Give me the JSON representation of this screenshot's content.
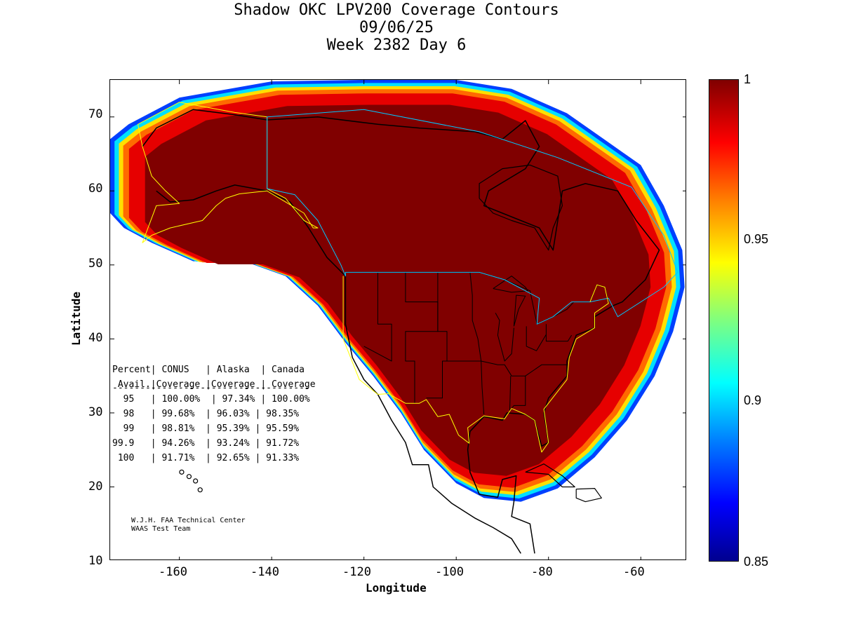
{
  "title": {
    "line1": "Shadow OKC LPV200 Coverage Contours",
    "line2": "09/06/25",
    "line3": "Week 2382 Day 6"
  },
  "axes": {
    "xlabel": "Longitude",
    "ylabel": "Latitude",
    "xticks": [
      "-160",
      "-140",
      "-120",
      "-100",
      "-80",
      "-60"
    ],
    "yticks": [
      "70",
      "60",
      "50",
      "40",
      "30",
      "20",
      "10"
    ],
    "xlim": [
      -175,
      -50
    ],
    "ylim": [
      10,
      75
    ]
  },
  "colorbar": {
    "labels": [
      "1",
      "0.95",
      "0.9",
      "0.85"
    ],
    "range": [
      0.85,
      1
    ],
    "colormap": "jet"
  },
  "colors": {
    "coverage_core": "#800000",
    "coverage_red": "#e60000",
    "coverage_orange": "#ff6a00",
    "coverage_yellow": "#ffe000",
    "coverage_cyan": "#00e0ff",
    "coverage_blue": "#0040ff",
    "alaska_boundary": "#ffff00",
    "canada_boundary": "#00c8ff"
  },
  "stats_table": {
    "header1": "Percent| CONUS   | Alaska  | Canada",
    "header2": " Avail.|Coverage |Coverage | Coverage",
    "separator": "------------------------------------",
    "rows": [
      "  95   | 100.00%  | 97.34% | 100.00%",
      "  98   | 99.68%  | 96.03% | 98.35%",
      "  99   | 98.81%  | 95.39% | 95.59%",
      "99.9   | 94.26%  | 93.24% | 91.72%",
      " 100   | 91.71%  | 92.65% | 91.33%"
    ]
  },
  "credits": {
    "line1": "W.J.H. FAA Technical Center",
    "line2": "WAAS Test Team"
  }
}
